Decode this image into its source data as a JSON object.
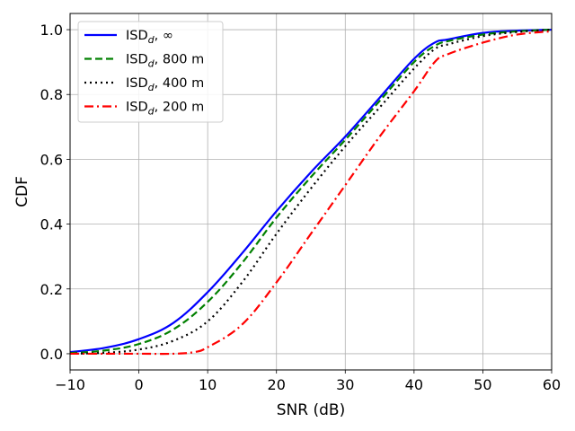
{
  "chart_data": {
    "type": "line",
    "title": "",
    "xlabel": "SNR (dB)",
    "ylabel": "CDF",
    "xlim": [
      -10,
      60
    ],
    "ylim": [
      -0.05,
      1.05
    ],
    "xticks": [
      -10,
      0,
      10,
      20,
      30,
      40,
      50,
      60
    ],
    "yticks": [
      0.0,
      0.2,
      0.4,
      0.6,
      0.8,
      1.0
    ],
    "xtick_labels": [
      "−10",
      "0",
      "10",
      "20",
      "30",
      "40",
      "50",
      "60"
    ],
    "ytick_labels": [
      "0.0",
      "0.2",
      "0.4",
      "0.6",
      "0.8",
      "1.0"
    ],
    "grid": true,
    "legend_position": "top-left",
    "series": [
      {
        "name_main": "ISD",
        "name_sub": "d",
        "name_rest": ", ∞",
        "color": "#0000ff",
        "linestyle": "solid",
        "x": [
          -10,
          -5,
          0,
          5,
          10,
          15,
          20,
          25,
          30,
          35,
          40,
          43,
          45,
          50,
          55,
          60
        ],
        "y": [
          0.005,
          0.018,
          0.045,
          0.095,
          0.19,
          0.31,
          0.44,
          0.56,
          0.67,
          0.79,
          0.91,
          0.96,
          0.97,
          0.99,
          0.997,
          1.0
        ]
      },
      {
        "name_main": "ISD",
        "name_sub": "d",
        "name_rest": ", 800 m",
        "color": "#008000",
        "linestyle": "dashed",
        "x": [
          -10,
          -5,
          0,
          5,
          10,
          15,
          20,
          25,
          30,
          35,
          40,
          43,
          45,
          50,
          55,
          60
        ],
        "y": [
          0.002,
          0.01,
          0.03,
          0.075,
          0.16,
          0.28,
          0.42,
          0.545,
          0.66,
          0.78,
          0.9,
          0.95,
          0.965,
          0.985,
          0.995,
          1.0
        ]
      },
      {
        "name_main": "ISD",
        "name_sub": "d",
        "name_rest": ", 400 m",
        "color": "#000000",
        "linestyle": "dotted",
        "x": [
          -10,
          -5,
          0,
          5,
          10,
          15,
          20,
          25,
          30,
          35,
          40,
          43,
          45,
          50,
          55,
          60
        ],
        "y": [
          0.0,
          0.003,
          0.013,
          0.04,
          0.1,
          0.22,
          0.37,
          0.51,
          0.64,
          0.76,
          0.88,
          0.94,
          0.955,
          0.98,
          0.993,
          1.0
        ]
      },
      {
        "name_main": "ISD",
        "name_sub": "d",
        "name_rest": ", 200 m",
        "color": "#ff0000",
        "linestyle": "dashdot",
        "x": [
          -10,
          -5,
          0,
          5,
          8,
          10,
          15,
          20,
          25,
          30,
          35,
          40,
          43,
          45,
          50,
          55,
          60
        ],
        "y": [
          0.0,
          0.0,
          0.0,
          0.0,
          0.005,
          0.02,
          0.09,
          0.22,
          0.37,
          0.52,
          0.67,
          0.81,
          0.9,
          0.925,
          0.96,
          0.985,
          0.995
        ]
      }
    ]
  }
}
